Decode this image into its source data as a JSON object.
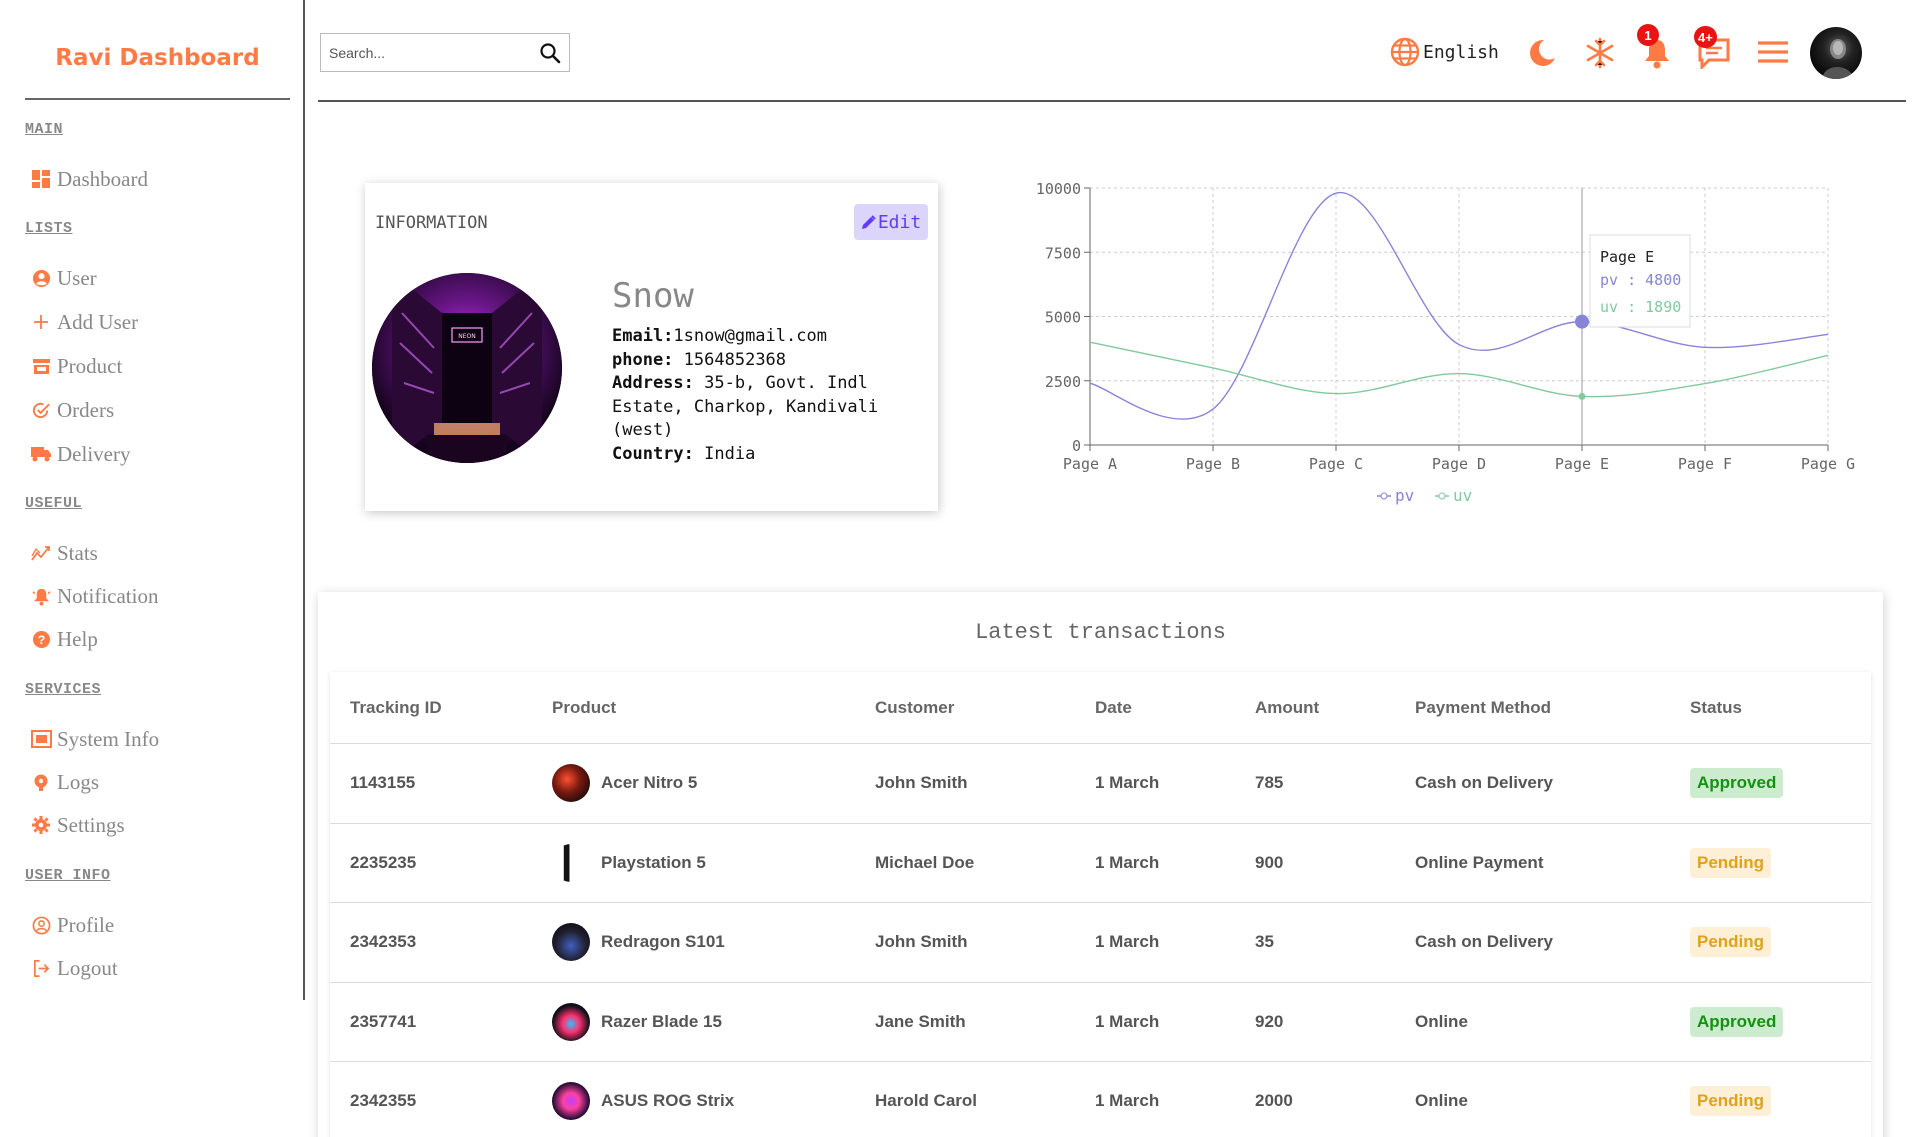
{
  "app": {
    "title": "Ravi Dashboard"
  },
  "sidebar": {
    "sections": [
      {
        "title": "MAIN",
        "items": [
          {
            "label": "Dashboard",
            "icon": "dashboard-icon"
          }
        ]
      },
      {
        "title": "LISTS",
        "items": [
          {
            "label": "User",
            "icon": "user-icon"
          },
          {
            "label": "Add User",
            "icon": "plus-icon"
          },
          {
            "label": "Product",
            "icon": "store-icon"
          },
          {
            "label": "Orders",
            "icon": "orders-icon"
          },
          {
            "label": "Delivery",
            "icon": "truck-icon"
          }
        ]
      },
      {
        "title": "USEFUL",
        "items": [
          {
            "label": "Stats",
            "icon": "stats-icon"
          },
          {
            "label": "Notification",
            "icon": "bell-icon"
          },
          {
            "label": "Help",
            "icon": "help-icon"
          }
        ]
      },
      {
        "title": "SERVICES",
        "items": [
          {
            "label": "System Info",
            "icon": "system-info-icon"
          },
          {
            "label": "Logs",
            "icon": "logs-icon"
          },
          {
            "label": "Settings",
            "icon": "gear-icon"
          }
        ]
      },
      {
        "title": "USER_INFO",
        "items": [
          {
            "label": "Profile",
            "icon": "profile-icon"
          },
          {
            "label": "Logout",
            "icon": "logout-icon"
          }
        ]
      }
    ]
  },
  "topbar": {
    "search_placeholder": "Search...",
    "language": "English",
    "notifications_count": "1",
    "messages_count": "4+",
    "accent_color": "#ff7a45"
  },
  "info": {
    "title": "INFORMATION",
    "edit_label": "Edit",
    "name": "Snow",
    "email_label": "Email:",
    "email": "1snow@gmail.com",
    "phone_label": "phone:",
    "phone": "1564852368",
    "address_label": "Address:",
    "address": "35-b, Govt. Indl Estate, Charkop, Kandivali (west)",
    "country_label": "Country:",
    "country": "India"
  },
  "chart_data": {
    "type": "line",
    "categories": [
      "Page A",
      "Page B",
      "Page C",
      "Page D",
      "Page E",
      "Page F",
      "Page G"
    ],
    "series": [
      {
        "name": "pv",
        "color": "#8884d8",
        "values": [
          2400,
          1398,
          9800,
          3908,
          4800,
          3800,
          4300
        ]
      },
      {
        "name": "uv",
        "color": "#82ca9d",
        "values": [
          4000,
          3000,
          2000,
          2780,
          1890,
          2390,
          3490
        ]
      }
    ],
    "yticks": [
      0,
      2500,
      5000,
      7500,
      10000
    ],
    "ylim": [
      0,
      10000
    ],
    "grid": true,
    "legend": "bottom",
    "tooltip": {
      "category": "Page E",
      "pv_label": "pv",
      "pv": "4800",
      "uv_label": "uv",
      "uv": "1890",
      "separator": ":"
    }
  },
  "transactions": {
    "title": "Latest transactions",
    "columns": [
      "Tracking ID",
      "Product",
      "Customer",
      "Date",
      "Amount",
      "Payment Method",
      "Status"
    ],
    "rows": [
      {
        "id": "1143155",
        "product": "Acer Nitro 5",
        "customer": "John Smith",
        "date": "1 March",
        "amount": "785",
        "method": "Cash on Delivery",
        "status": "Approved"
      },
      {
        "id": "2235235",
        "product": "Playstation 5",
        "customer": "Michael Doe",
        "date": "1 March",
        "amount": "900",
        "method": "Online Payment",
        "status": "Pending"
      },
      {
        "id": "2342353",
        "product": "Redragon S101",
        "customer": "John Smith",
        "date": "1 March",
        "amount": "35",
        "method": "Cash on Delivery",
        "status": "Pending"
      },
      {
        "id": "2357741",
        "product": "Razer Blade 15",
        "customer": "Jane Smith",
        "date": "1 March",
        "amount": "920",
        "method": "Online",
        "status": "Approved"
      },
      {
        "id": "2342355",
        "product": "ASUS ROG Strix",
        "customer": "Harold Carol",
        "date": "1 March",
        "amount": "2000",
        "method": "Online",
        "status": "Pending"
      }
    ]
  }
}
